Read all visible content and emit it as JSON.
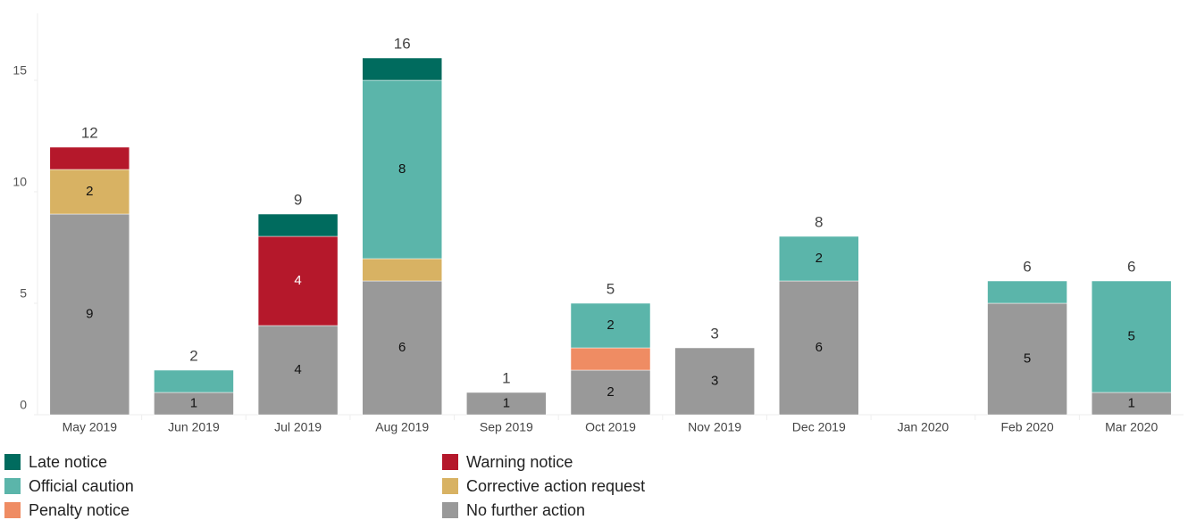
{
  "chart_data": {
    "type": "stacked_bar",
    "categories": [
      "May 2019",
      "Jun 2019",
      "Jul 2019",
      "Aug 2019",
      "Sep 2019",
      "Oct 2019",
      "Nov 2019",
      "Dec 2019",
      "Jan 2020",
      "Feb 2020",
      "Mar 2020"
    ],
    "series": [
      {
        "name": "Late notice",
        "color": "#006b5e",
        "values": [
          0,
          0,
          1,
          1,
          0,
          0,
          0,
          0,
          0,
          0,
          0
        ],
        "value_labels": [
          null,
          null,
          null,
          null,
          null,
          null,
          null,
          null,
          null,
          null,
          null
        ]
      },
      {
        "name": "Warning notice",
        "color": "#b5182b",
        "values": [
          1,
          0,
          4,
          0,
          0,
          0,
          0,
          0,
          0,
          0,
          0
        ],
        "value_labels": [
          null,
          null,
          "4",
          null,
          null,
          null,
          null,
          null,
          null,
          null,
          null
        ]
      },
      {
        "name": "Official caution",
        "color": "#5bb5aa",
        "values": [
          0,
          1,
          0,
          8,
          0,
          2,
          0,
          2,
          0,
          1,
          5
        ],
        "value_labels": [
          null,
          null,
          null,
          "8",
          null,
          "2",
          null,
          "2",
          null,
          null,
          "5"
        ]
      },
      {
        "name": "Corrective action request",
        "color": "#d8b263",
        "values": [
          2,
          0,
          0,
          1,
          0,
          0,
          0,
          0,
          0,
          0,
          0
        ],
        "value_labels": [
          "2",
          null,
          null,
          null,
          null,
          null,
          null,
          null,
          null,
          null,
          null
        ]
      },
      {
        "name": "Penalty notice",
        "color": "#ef8c63",
        "values": [
          0,
          0,
          0,
          0,
          0,
          1,
          0,
          0,
          0,
          0,
          0
        ],
        "value_labels": [
          null,
          null,
          null,
          null,
          null,
          null,
          null,
          null,
          null,
          null,
          null
        ]
      },
      {
        "name": "No further action",
        "color": "#999999",
        "values": [
          9,
          1,
          4,
          6,
          1,
          2,
          3,
          6,
          0,
          5,
          1
        ],
        "value_labels": [
          "9",
          "1",
          "4",
          "6",
          "1",
          "2",
          "3",
          "6",
          null,
          "5",
          "1"
        ]
      }
    ],
    "totals": [
      12,
      2,
      9,
      16,
      1,
      5,
      3,
      8,
      null,
      6,
      6
    ],
    "ylim": [
      0,
      18
    ],
    "yticks": [
      0,
      5,
      10,
      15
    ],
    "grid": false
  }
}
